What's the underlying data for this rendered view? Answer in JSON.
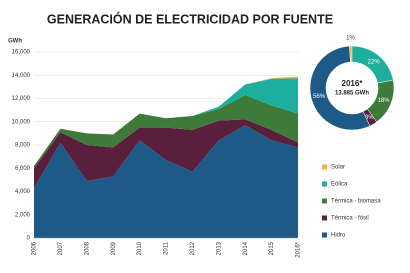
{
  "title": "GENERACIÓN DE ELECTRICIDAD POR FUENTE",
  "chart_data": [
    {
      "type": "area",
      "ylabel": "GWh",
      "categories": [
        "2006",
        "2007",
        "2008",
        "2009",
        "2010",
        "2011",
        "2012",
        "2013",
        "2014",
        "2015",
        "2016*"
      ],
      "ylim": [
        0,
        16000
      ],
      "yticks": [
        0,
        {
          "value": 2000,
          "label": "2,000"
        },
        {
          "value": 4000,
          "label": "4,000"
        },
        {
          "value": 6000,
          "label": "6,000"
        },
        {
          "value": 8000,
          "label": "8,000"
        },
        {
          "value": 10000,
          "label": "10,000"
        },
        {
          "value": 12000,
          "label": "12,000"
        },
        {
          "value": 14000,
          "label": "14,000"
        },
        {
          "value": 16000,
          "label": "16,000"
        }
      ],
      "grid": true,
      "series": [
        {
          "name": "Hidro",
          "color": "#1d5a87",
          "values": [
            4300,
            8200,
            4900,
            5300,
            8400,
            6700,
            5700,
            8400,
            9700,
            8400,
            7800
          ]
        },
        {
          "name": "Térmica - fósil",
          "color": "#5b1f3e",
          "values": [
            1700,
            900,
            3100,
            2500,
            1100,
            2800,
            3600,
            1700,
            500,
            900,
            400
          ]
        },
        {
          "name": "Térmica - biomasa",
          "color": "#3e7b3b",
          "values": [
            200,
            300,
            1000,
            1100,
            1200,
            800,
            1200,
            1000,
            2100,
            2100,
            2500
          ]
        },
        {
          "name": "Eólica",
          "color": "#1eae9e",
          "values": [
            0,
            0,
            0,
            0,
            0,
            0,
            0,
            200,
            900,
            2300,
            3050
          ]
        },
        {
          "name": "Solar",
          "color": "#f2b13f",
          "values": [
            0,
            0,
            0,
            0,
            0,
            0,
            0,
            0,
            0,
            50,
            135
          ]
        }
      ]
    },
    {
      "type": "pie",
      "center_title": "2016*",
      "center_subtitle": "13.885 GWh",
      "categories": [
        "Solar",
        "Eólica",
        "Térmica - biomasa",
        "Térmica - fósil",
        "Hidro"
      ],
      "colors": [
        "#f2b13f",
        "#1eae9e",
        "#3e7b3b",
        "#5b1f3e",
        "#1d5a87"
      ],
      "values": [
        1,
        22,
        18,
        3,
        56
      ],
      "value_labels": [
        "1%",
        "22%",
        "18%",
        "3%",
        "56%"
      ]
    }
  ]
}
